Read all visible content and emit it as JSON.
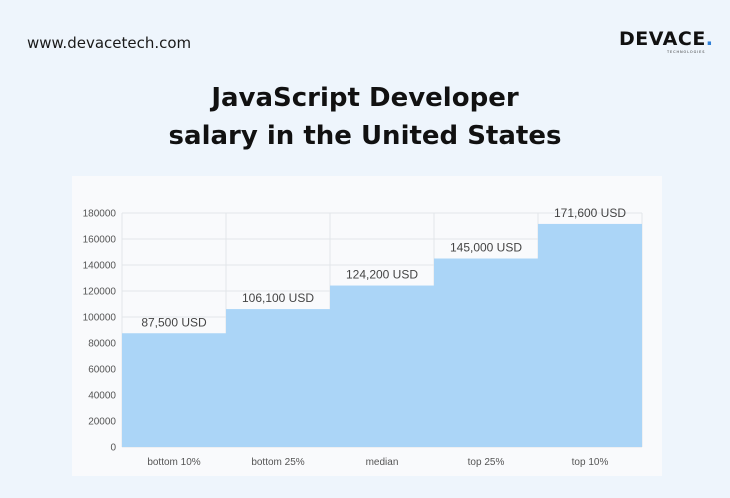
{
  "header": {
    "site_url": "www.devacetech.com",
    "logo_text": "DEVACE",
    "logo_dot": ".",
    "logo_sub": "TECHNOLOGIES"
  },
  "title": {
    "line1": "JavaScript Developer",
    "line2": "salary in the United States"
  },
  "colors": {
    "bar": "#abd5f7",
    "grid": "#e3e6ea",
    "tick_text": "#555555",
    "label_text": "#444444"
  },
  "chart_data": {
    "type": "bar",
    "title": "JavaScript Developer salary in the United States",
    "xlabel": "",
    "ylabel": "",
    "categories": [
      "bottom 10%",
      "bottom 25%",
      "median",
      "top 25%",
      "top 10%"
    ],
    "values": [
      87500,
      106100,
      124200,
      145000,
      171600
    ],
    "data_labels": [
      "87,500 USD",
      "106,100 USD",
      "124,200 USD",
      "145,000 USD",
      "171,600 USD"
    ],
    "ylim": [
      0,
      180000
    ],
    "yticks": [
      0,
      20000,
      40000,
      60000,
      80000,
      100000,
      120000,
      140000,
      160000,
      180000
    ],
    "grid": true,
    "legend": "none"
  }
}
